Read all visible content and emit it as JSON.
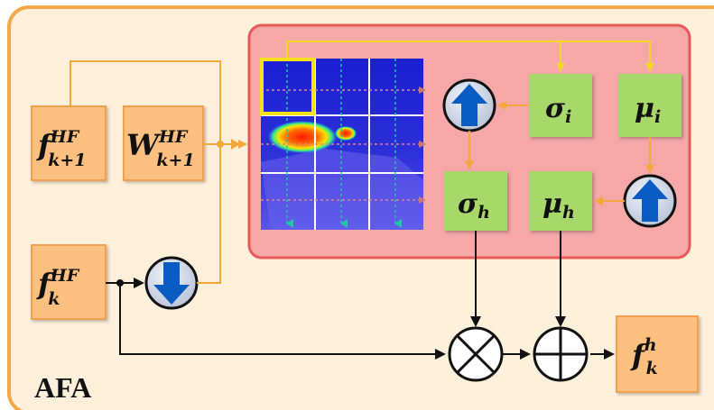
{
  "module_label": "AFA",
  "inputs": {
    "f_next": {
      "symbol": "f",
      "sup": "HF",
      "sub": "k+1"
    },
    "w_next": {
      "symbol": "W",
      "sup": "HF",
      "sub": "k+1"
    },
    "f_k": {
      "symbol": "f",
      "sup": "HF",
      "sub": "k"
    }
  },
  "stats": {
    "sigma_i": {
      "symbol": "σ",
      "sub": "i"
    },
    "mu_i": {
      "symbol": "μ",
      "sub": "i"
    },
    "sigma_h": {
      "symbol": "σ",
      "sub": "h"
    },
    "mu_h": {
      "symbol": "μ",
      "sub": "h"
    }
  },
  "output": {
    "symbol": "f",
    "sup": "h",
    "sub": "k"
  },
  "operators": {
    "multiply": "⊗",
    "add": "⊕"
  },
  "icons": [
    "arrow-up-icon",
    "arrow-up-icon",
    "arrow-down-icon",
    "heatmap-grid"
  ],
  "colors": {
    "outer_border": "#f5a84a",
    "outer_fill": "#fff0dc",
    "feature_box_fill": "#fbbf80",
    "feature_box_border": "#f0a050",
    "attention_panel_fill": "#f6a7a7",
    "attention_panel_border": "#e55a5a",
    "stat_box_fill": "#a9d86b",
    "orange_arrow": "#f4a73b",
    "yellow_arrow": "#f3d626",
    "up_arrow_blue": "#0b5cc2"
  }
}
